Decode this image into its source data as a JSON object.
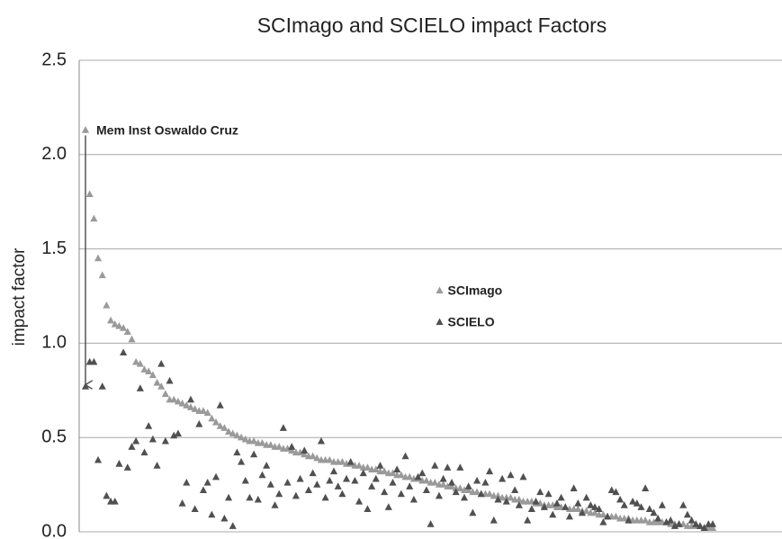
{
  "chart_data": {
    "type": "scatter",
    "title": "SCImago and SCIELO impact Factors",
    "y_label": "impact factor",
    "annotation": "Mem Inst Oswaldo Cruz",
    "legend": "center",
    "grid": true,
    "ylim": [
      0,
      2.5
    ],
    "yticks": [
      {
        "value": 0,
        "label": "0.0"
      },
      0.5,
      {
        "value": 1,
        "label": "1.0"
      },
      1.5,
      {
        "value": 2,
        "label": "2.0"
      },
      2.5
    ],
    "series": [
      {
        "name": "SCImago",
        "color": "#9a9a9a",
        "values": [
          2.13,
          1.79,
          1.66,
          1.45,
          1.36,
          1.2,
          1.12,
          1.1,
          1.09,
          1.08,
          1.06,
          1.02,
          0.9,
          0.89,
          0.86,
          0.85,
          0.83,
          0.79,
          0.77,
          0.73,
          0.7,
          0.7,
          0.69,
          0.68,
          0.67,
          0.66,
          0.65,
          0.64,
          0.64,
          0.63,
          0.6,
          0.58,
          0.56,
          0.55,
          0.53,
          0.52,
          0.51,
          0.5,
          0.49,
          0.48,
          0.48,
          0.47,
          0.47,
          0.46,
          0.46,
          0.45,
          0.45,
          0.44,
          0.44,
          0.43,
          0.42,
          0.42,
          0.41,
          0.4,
          0.4,
          0.39,
          0.38,
          0.38,
          0.38,
          0.37,
          0.37,
          0.37,
          0.36,
          0.36,
          0.35,
          0.35,
          0.34,
          0.34,
          0.33,
          0.33,
          0.32,
          0.32,
          0.31,
          0.31,
          0.3,
          0.3,
          0.29,
          0.29,
          0.28,
          0.28,
          0.27,
          0.27,
          0.26,
          0.26,
          0.25,
          0.25,
          0.24,
          0.24,
          0.23,
          0.23,
          0.22,
          0.22,
          0.21,
          0.21,
          0.2,
          0.2,
          0.2,
          0.19,
          0.19,
          0.18,
          0.18,
          0.18,
          0.17,
          0.17,
          0.16,
          0.16,
          0.16,
          0.15,
          0.15,
          0.14,
          0.14,
          0.14,
          0.13,
          0.13,
          0.13,
          0.12,
          0.12,
          0.12,
          0.11,
          0.11,
          0.1,
          0.1,
          0.09,
          0.09,
          0.08,
          0.08,
          0.08,
          0.07,
          0.07,
          0.07,
          0.06,
          0.06,
          0.06,
          0.06,
          0.05,
          0.05,
          0.05,
          0.05,
          0.05,
          0.04,
          0.04,
          0.04,
          0.04,
          0.03,
          0.03,
          0.03,
          0.03,
          0.02,
          0.02,
          0.02
        ]
      },
      {
        "name": "SCIELO",
        "color": "#505050",
        "values": [
          0.77,
          0.9,
          0.9,
          0.38,
          0.77,
          0.19,
          0.16,
          0.16,
          0.36,
          0.95,
          0.34,
          0.45,
          0.48,
          0.76,
          0.42,
          0.56,
          0.49,
          0.35,
          0.89,
          0.48,
          0.8,
          0.51,
          0.52,
          0.15,
          0.26,
          0.7,
          0.12,
          0.57,
          0.22,
          0.26,
          0.09,
          0.29,
          0.67,
          0.07,
          0.18,
          0.03,
          0.42,
          0.37,
          0.27,
          0.18,
          0.41,
          0.17,
          0.3,
          0.35,
          0.25,
          0.14,
          0.2,
          0.55,
          0.26,
          0.45,
          0.19,
          0.28,
          0.43,
          0.22,
          0.31,
          0.25,
          0.48,
          0.18,
          0.27,
          0.32,
          0.24,
          0.2,
          0.28,
          0.37,
          0.27,
          0.16,
          0.31,
          0.12,
          0.24,
          0.28,
          0.35,
          0.21,
          0.13,
          0.26,
          0.33,
          0.2,
          0.4,
          0.24,
          0.17,
          0.29,
          0.31,
          0.22,
          0.04,
          0.35,
          0.19,
          0.28,
          0.34,
          0.26,
          0.21,
          0.34,
          0.18,
          0.24,
          0.1,
          0.27,
          0.2,
          0.26,
          0.32,
          0.06,
          0.17,
          0.28,
          0.16,
          0.3,
          0.22,
          0.14,
          0.29,
          0.06,
          0.12,
          0.16,
          0.21,
          0.13,
          0.2,
          0.09,
          0.15,
          0.18,
          0.13,
          0.08,
          0.23,
          0.15,
          0.1,
          0.18,
          0.14,
          0.13,
          0.12,
          0.05,
          0.08,
          0.22,
          0.21,
          0.17,
          0.14,
          0.06,
          0.16,
          0.15,
          0.13,
          0.23,
          0.12,
          0.1,
          0.07,
          0.14,
          0.05,
          0.06,
          0.03,
          0.04,
          0.14,
          0.09,
          0.06,
          0.04,
          0.03,
          0.02,
          0.04,
          0.04
        ]
      }
    ]
  }
}
